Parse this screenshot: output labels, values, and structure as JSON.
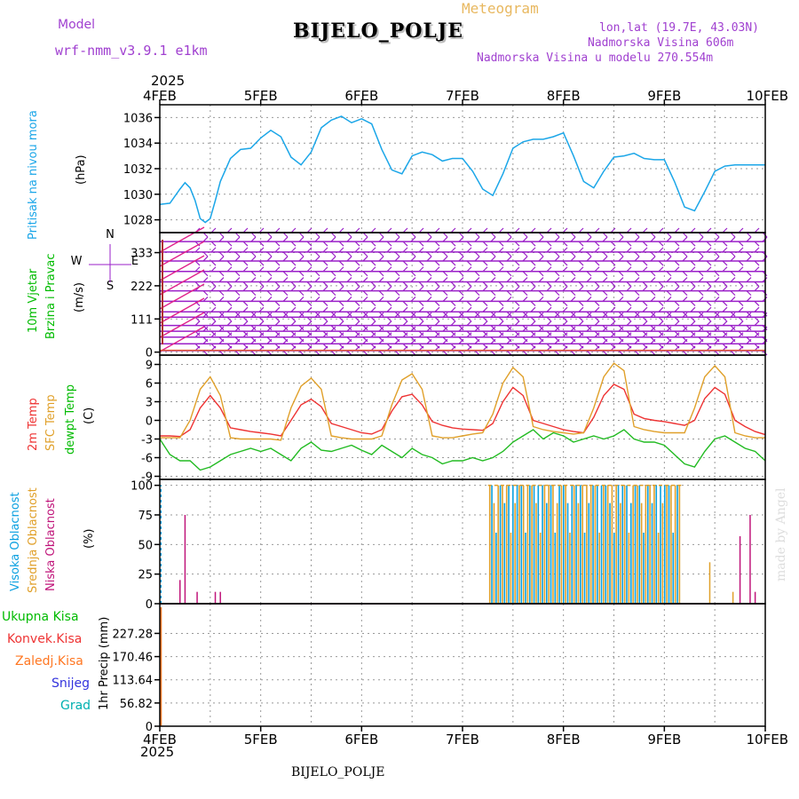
{
  "header": {
    "model_label": "Model",
    "model_name": "wrf-nmm_v3.9.1  e1km",
    "station": "BIJELO_POLJE",
    "meteogram": "Meteogram",
    "lonlat": "lon,lat (19.7E, 43.03N)",
    "altitude": "Nadmorska Visina 606m",
    "model_altitude": "Nadmorska Visina u modelu 270.554m",
    "watermark": "made by Angel",
    "footer_station": "BIJELO_POLJE"
  },
  "colors": {
    "pressure": "#1ba6e8",
    "wind_label": "#00bb00",
    "wind_barb": "#9a1fc8",
    "wind_arrow": "#e0208a",
    "temp_2m": "#ee3333",
    "temp_sfc": "#e0a02a",
    "dewpoint": "#22bb22",
    "cloud_high": "#0aa0e0",
    "cloud_mid": "#e0a02a",
    "cloud_low": "#c0157a",
    "rain_total": "#00bb00",
    "rain_conv": "#ee3333",
    "freezing": "#ff7722",
    "snow": "#3333dd",
    "hail": "#00b0b0",
    "header_purple": "#a040d0",
    "header_gold": "#e8b860"
  },
  "chart_data": [
    {
      "type": "line",
      "panel": "pressure",
      "ylabel": [
        "Pritisak na nivou mora",
        "(hPa)"
      ],
      "yticks": [
        1028,
        1030,
        1032,
        1034,
        1036
      ],
      "ylim": [
        1027,
        1037
      ],
      "x_days": [
        0,
        0.1,
        0.2,
        0.25,
        0.3,
        0.35,
        0.4,
        0.45,
        0.5,
        0.55,
        0.6,
        0.7,
        0.8,
        0.9,
        1,
        1.1,
        1.2,
        1.3,
        1.4,
        1.5,
        1.6,
        1.7,
        1.8,
        1.9,
        2,
        2.1,
        2.2,
        2.3,
        2.4,
        2.5,
        2.6,
        2.7,
        2.8,
        2.9,
        3,
        3.1,
        3.2,
        3.3,
        3.4,
        3.5,
        3.6,
        3.7,
        3.8,
        3.9,
        4,
        4.1,
        4.2,
        4.3,
        4.4,
        4.5,
        4.6,
        4.7,
        4.8,
        4.9,
        5,
        5.1,
        5.2,
        5.3,
        5.4,
        5.5,
        5.6,
        5.7,
        5.8,
        5.9,
        6
      ],
      "values": [
        1029.2,
        1029.3,
        1030.4,
        1030.9,
        1030.5,
        1029.5,
        1028.1,
        1027.8,
        1028.1,
        1029.5,
        1031.0,
        1032.8,
        1033.5,
        1033.6,
        1034.4,
        1035.0,
        1034.5,
        1032.9,
        1032.3,
        1033.3,
        1035.2,
        1035.8,
        1036.1,
        1035.6,
        1035.9,
        1035.5,
        1033.5,
        1031.9,
        1031.6,
        1033.0,
        1033.3,
        1033.1,
        1032.6,
        1032.8,
        1032.8,
        1031.8,
        1030.4,
        1029.9,
        1031.6,
        1033.6,
        1034.1,
        1034.3,
        1034.3,
        1034.5,
        1034.8,
        1033.0,
        1031.0,
        1030.5,
        1031.8,
        1032.9,
        1033.0,
        1033.2,
        1032.8,
        1032.7,
        1032.7,
        1031.0,
        1029.0,
        1028.7,
        1030.2,
        1031.8,
        1032.2,
        1032.3,
        1032.3,
        1032.3,
        1032.3
      ]
    },
    {
      "type": "barbs",
      "panel": "wind",
      "ylabel": [
        "10m Vjetar",
        "Brzina i Pravac",
        "(m/s)"
      ],
      "yticks": [
        0,
        111,
        222,
        333
      ],
      "ylim": [
        -10,
        400
      ],
      "compass": [
        "N",
        "E",
        "S",
        "W"
      ],
      "barb_rows": [
        5,
        28,
        50,
        70,
        89,
        117,
        135,
        170,
        205,
        235,
        270,
        305,
        335,
        370,
        400
      ]
    },
    {
      "type": "line",
      "panel": "temperature",
      "ylabel": [
        "2m Temp",
        "SFC Temp",
        "dewpt Temp",
        "(C)"
      ],
      "yticks": [
        -9,
        -6,
        -3,
        0,
        3,
        6,
        9
      ],
      "ylim": [
        -9.5,
        10.5
      ],
      "x_days": [
        0,
        0.1,
        0.2,
        0.3,
        0.4,
        0.5,
        0.6,
        0.7,
        0.8,
        0.9,
        1,
        1.1,
        1.2,
        1.3,
        1.4,
        1.5,
        1.6,
        1.7,
        1.8,
        1.9,
        2,
        2.1,
        2.2,
        2.3,
        2.4,
        2.5,
        2.6,
        2.7,
        2.8,
        2.9,
        3,
        3.1,
        3.2,
        3.3,
        3.4,
        3.5,
        3.6,
        3.7,
        3.8,
        3.9,
        4,
        4.1,
        4.2,
        4.3,
        4.4,
        4.5,
        4.6,
        4.7,
        4.8,
        4.9,
        5,
        5.1,
        5.2,
        5.3,
        5.4,
        5.5,
        5.6,
        5.7,
        5.8,
        5.9,
        6
      ],
      "series": [
        {
          "name": "2m Temp",
          "values": [
            -2.5,
            -2.5,
            -2.6,
            -1.5,
            2.0,
            4.0,
            2.0,
            -1.2,
            -1.5,
            -1.8,
            -2.0,
            -2.2,
            -2.5,
            0.0,
            2.5,
            3.4,
            2.2,
            -0.5,
            -1.0,
            -1.5,
            -2.0,
            -2.2,
            -1.5,
            1.5,
            3.8,
            4.2,
            2.5,
            -0.2,
            -0.8,
            -1.2,
            -1.4,
            -1.5,
            -1.6,
            -0.5,
            3.0,
            5.3,
            4.0,
            0.0,
            -0.5,
            -1.0,
            -1.5,
            -1.8,
            -2.0,
            0.5,
            4.0,
            5.8,
            5.0,
            1.0,
            0.3,
            0.0,
            -0.2,
            -0.5,
            -0.8,
            0.0,
            3.5,
            5.3,
            4.2,
            0.0,
            -1.0,
            -1.8,
            -2.3
          ]
        },
        {
          "name": "SFC Temp",
          "values": [
            -2.8,
            -2.8,
            -2.8,
            0.0,
            5.0,
            7.0,
            4.0,
            -2.8,
            -3.0,
            -3.0,
            -3.0,
            -3.0,
            -3.2,
            2.0,
            5.5,
            6.8,
            5.0,
            -2.5,
            -2.8,
            -3.0,
            -3.0,
            -3.0,
            -2.5,
            2.5,
            6.5,
            7.5,
            5.0,
            -2.5,
            -2.8,
            -2.8,
            -2.5,
            -2.2,
            -2.0,
            1.0,
            6.0,
            8.5,
            7.0,
            -1.0,
            -1.5,
            -1.8,
            -2.0,
            -2.2,
            -2.0,
            2.0,
            7.0,
            9.2,
            8.0,
            -1.0,
            -1.5,
            -1.8,
            -2.0,
            -2.0,
            -2.0,
            2.0,
            7.0,
            8.8,
            7.0,
            -2.0,
            -2.5,
            -2.8,
            -2.8
          ]
        },
        {
          "name": "dewpt Temp",
          "values": [
            -3.0,
            -5.5,
            -6.5,
            -6.5,
            -8.0,
            -7.5,
            -6.5,
            -5.5,
            -5.0,
            -4.5,
            -5.0,
            -4.5,
            -5.5,
            -6.5,
            -4.5,
            -3.5,
            -4.8,
            -5.0,
            -4.5,
            -4.0,
            -4.8,
            -5.5,
            -4.0,
            -5.0,
            -6.0,
            -4.5,
            -5.5,
            -6.0,
            -7.0,
            -6.5,
            -6.5,
            -6.0,
            -6.5,
            -6.0,
            -5.0,
            -3.5,
            -2.5,
            -1.5,
            -3.0,
            -2.0,
            -2.5,
            -3.5,
            -3.0,
            -2.5,
            -3.0,
            -2.5,
            -1.5,
            -3.0,
            -3.5,
            -3.5,
            -4.0,
            -5.5,
            -7.0,
            -7.5,
            -5.0,
            -3.0,
            -2.5,
            -3.5,
            -4.5,
            -5.0,
            -6.5
          ]
        }
      ]
    },
    {
      "type": "bar",
      "panel": "clouds",
      "ylabel": [
        "Visoka Oblacnost",
        "Srednja Oblacnost",
        "Niska Oblacnost",
        "(%)"
      ],
      "yticks": [
        0,
        25,
        50,
        75,
        100
      ],
      "ylim": [
        0,
        105
      ],
      "low_spikes": [
        [
          0.2,
          20
        ],
        [
          0.25,
          75
        ],
        [
          0.37,
          10
        ],
        [
          0.55,
          10
        ],
        [
          0.6,
          10
        ],
        [
          5.75,
          57
        ],
        [
          5.85,
          75
        ],
        [
          5.9,
          10
        ]
      ],
      "mid_spikes": [
        [
          5.45,
          35
        ],
        [
          5.68,
          10
        ]
      ],
      "dense_start": 3.27,
      "dense_end": 5.15
    },
    {
      "type": "bar",
      "panel": "precipitation",
      "legend": [
        "Ukupna  Kisa",
        "Konvek.Kisa",
        "Zaledj.Kisa",
        "Snijeg",
        "Grad"
      ],
      "ylabel": [
        "1hr Precip (mm)"
      ],
      "yticks": [
        0,
        56.82,
        113.64,
        170.46,
        227.28
      ],
      "ylim": [
        0,
        300
      ],
      "values": [
        0
      ]
    }
  ],
  "xaxis": {
    "year": "2025",
    "labels": [
      "4FEB",
      "5FEB",
      "6FEB",
      "7FEB",
      "8FEB",
      "9FEB",
      "10FEB"
    ]
  }
}
